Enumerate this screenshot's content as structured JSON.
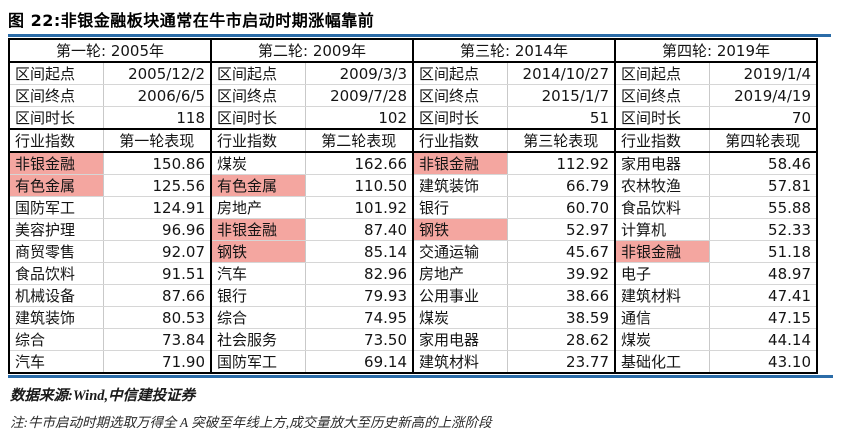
{
  "title": "图 22:非银金融板块通常在牛市启动时期涨幅靠前",
  "source": "数据来源:Wind,中信建投证券",
  "note": "注:牛市启动时期选取万得全 A 突破至年线上方,成交量放大至历史新高的上涨阶段",
  "colors": {
    "highlight_pink": "#F4A6A0",
    "rule_blue": "#2B6CA8",
    "grid_gray": "#c9c9c9",
    "border_black": "#000000"
  },
  "table": {
    "index_col_label": "行业指数",
    "rounds": [
      {
        "title": "第一轮: 2005年",
        "start_label": "区间起点",
        "start": "2005/12/2",
        "end_label": "区间终点",
        "end": "2006/6/5",
        "duration_label": "区间时长",
        "duration": "118",
        "perf_col_label": "第一轮表现",
        "industries": [
          {
            "name": "非银金融",
            "value": "150.86",
            "highlight": true
          },
          {
            "name": "有色金属",
            "value": "125.56",
            "highlight": true
          },
          {
            "name": "国防军工",
            "value": "124.91",
            "highlight": false
          },
          {
            "name": "美容护理",
            "value": "96.96",
            "highlight": false
          },
          {
            "name": "商贸零售",
            "value": "92.07",
            "highlight": false
          },
          {
            "name": "食品饮料",
            "value": "91.51",
            "highlight": false
          },
          {
            "name": "机械设备",
            "value": "87.66",
            "highlight": false
          },
          {
            "name": "建筑装饰",
            "value": "80.53",
            "highlight": false
          },
          {
            "name": "综合",
            "value": "73.84",
            "highlight": false
          },
          {
            "name": "汽车",
            "value": "71.90",
            "highlight": false
          }
        ]
      },
      {
        "title": "第二轮: 2009年",
        "start_label": "区间起点",
        "start": "2009/3/3",
        "end_label": "区间终点",
        "end": "2009/7/28",
        "duration_label": "区间时长",
        "duration": "102",
        "perf_col_label": "第二轮表现",
        "industries": [
          {
            "name": "煤炭",
            "value": "162.66",
            "highlight": false
          },
          {
            "name": "有色金属",
            "value": "110.50",
            "highlight": true
          },
          {
            "name": "房地产",
            "value": "101.92",
            "highlight": false
          },
          {
            "name": "非银金融",
            "value": "87.40",
            "highlight": true
          },
          {
            "name": "钢铁",
            "value": "85.14",
            "highlight": true
          },
          {
            "name": "汽车",
            "value": "82.96",
            "highlight": false
          },
          {
            "name": "银行",
            "value": "79.93",
            "highlight": false
          },
          {
            "name": "综合",
            "value": "74.95",
            "highlight": false
          },
          {
            "name": "社会服务",
            "value": "73.50",
            "highlight": false
          },
          {
            "name": "国防军工",
            "value": "69.14",
            "highlight": false
          }
        ]
      },
      {
        "title": "第三轮: 2014年",
        "start_label": "区间起点",
        "start": "2014/10/27",
        "end_label": "区间终点",
        "end": "2015/1/7",
        "duration_label": "区间时长",
        "duration": "51",
        "perf_col_label": "第三轮表现",
        "industries": [
          {
            "name": "非银金融",
            "value": "112.92",
            "highlight": true
          },
          {
            "name": "建筑装饰",
            "value": "66.79",
            "highlight": false
          },
          {
            "name": "银行",
            "value": "60.70",
            "highlight": false
          },
          {
            "name": "钢铁",
            "value": "52.97",
            "highlight": true
          },
          {
            "name": "交通运输",
            "value": "45.67",
            "highlight": false
          },
          {
            "name": "房地产",
            "value": "39.92",
            "highlight": false
          },
          {
            "name": "公用事业",
            "value": "38.66",
            "highlight": false
          },
          {
            "name": "煤炭",
            "value": "38.59",
            "highlight": false
          },
          {
            "name": "家用电器",
            "value": "28.62",
            "highlight": false
          },
          {
            "name": "建筑材料",
            "value": "23.77",
            "highlight": false
          }
        ]
      },
      {
        "title": "第四轮: 2019年",
        "start_label": "区间起点",
        "start": "2019/1/4",
        "end_label": "区间终点",
        "end": "2019/4/19",
        "duration_label": "区间时长",
        "duration": "70",
        "perf_col_label": "第四轮表现",
        "industries": [
          {
            "name": "家用电器",
            "value": "58.46",
            "highlight": false
          },
          {
            "name": "农林牧渔",
            "value": "57.81",
            "highlight": false
          },
          {
            "name": "食品饮料",
            "value": "55.88",
            "highlight": false
          },
          {
            "name": "计算机",
            "value": "52.33",
            "highlight": false
          },
          {
            "name": "非银金融",
            "value": "51.18",
            "highlight": true
          },
          {
            "name": "电子",
            "value": "48.97",
            "highlight": false
          },
          {
            "name": "建筑材料",
            "value": "47.41",
            "highlight": false
          },
          {
            "name": "通信",
            "value": "47.15",
            "highlight": false
          },
          {
            "name": "煤炭",
            "value": "44.14",
            "highlight": false
          },
          {
            "name": "基础化工",
            "value": "43.10",
            "highlight": false
          }
        ]
      }
    ]
  }
}
